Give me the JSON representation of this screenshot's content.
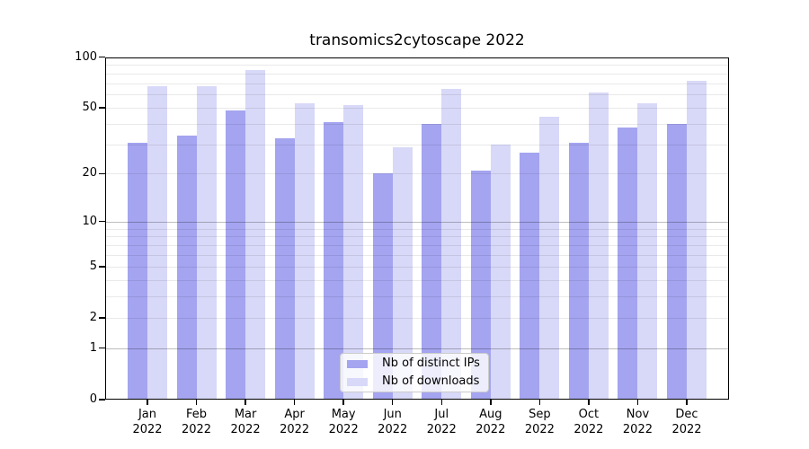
{
  "chart_data": {
    "type": "bar",
    "title": "transomics2cytoscape 2022",
    "year": "2022",
    "categories": [
      "Jan",
      "Feb",
      "Mar",
      "Apr",
      "May",
      "Jun",
      "Jul",
      "Aug",
      "Sep",
      "Oct",
      "Nov",
      "Dec"
    ],
    "series": [
      {
        "name": "Nb of distinct IPs",
        "color": "#a4a4f0",
        "values": [
          31,
          34,
          48,
          33,
          41,
          20,
          40,
          21,
          27,
          31,
          38,
          40
        ]
      },
      {
        "name": "Nb of downloads",
        "color": "#d8d8f8",
        "values": [
          67,
          67,
          84,
          53,
          52,
          29,
          65,
          30,
          44,
          62,
          53,
          72
        ]
      }
    ],
    "xlabel": "",
    "ylabel": "",
    "yscale": "log1p",
    "yticks": [
      0,
      1,
      2,
      5,
      10,
      20,
      50,
      100
    ],
    "ylim": [
      0,
      100
    ],
    "grid": true,
    "legend_position": "lower center"
  },
  "colors": {
    "axis": "#000000",
    "legend_border": "#cccccc"
  }
}
